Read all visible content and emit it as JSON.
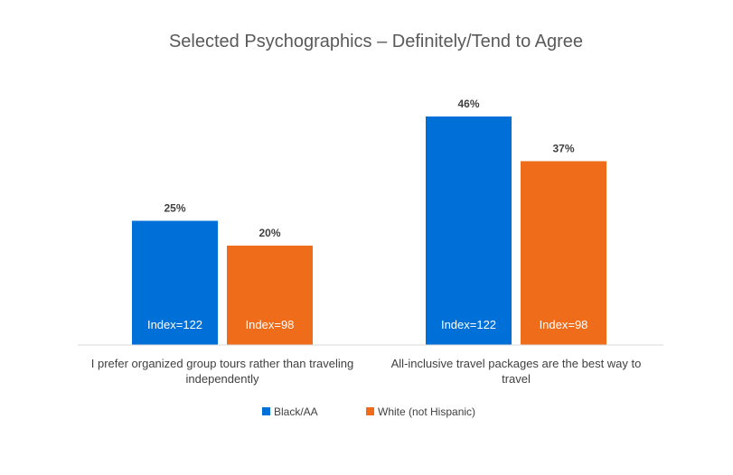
{
  "chart_data": {
    "type": "bar",
    "title": "Selected Psychographics – Definitely/Tend to Agree",
    "categories": [
      [
        "I prefer organized group tours rather than traveling",
        "independently"
      ],
      [
        "All-inclusive travel packages are the best way to",
        "travel"
      ]
    ],
    "series": [
      {
        "name": "Black/AA",
        "color": "#0070D9",
        "values": [
          25,
          46
        ],
        "value_labels": [
          "25%",
          "46%"
        ],
        "inner_labels": [
          "Index=122",
          "Index=122"
        ]
      },
      {
        "name": "White (not Hispanic)",
        "color": "#EE6C1A",
        "values": [
          20,
          37
        ],
        "value_labels": [
          "20%",
          "37%"
        ],
        "inner_labels": [
          "Index=98",
          "Index=98"
        ]
      }
    ],
    "ylim": [
      0,
      50
    ],
    "grid": false,
    "legend_position": "bottom"
  }
}
